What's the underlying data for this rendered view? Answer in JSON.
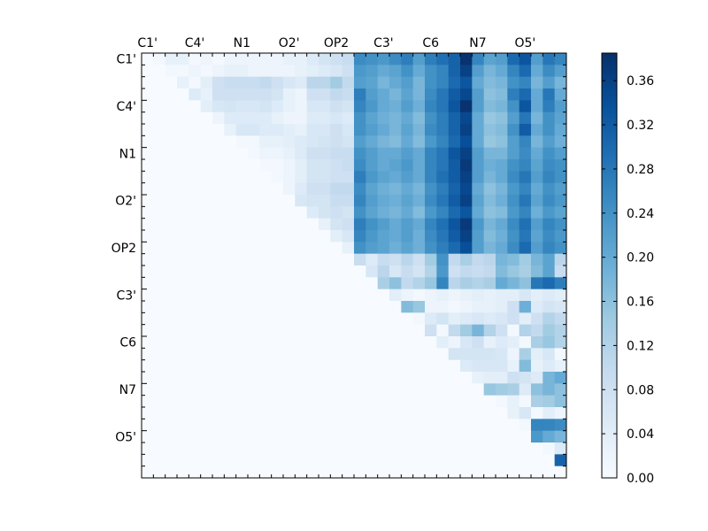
{
  "chart_data": {
    "type": "heatmap",
    "title": "",
    "xlabel": "",
    "ylabel": "",
    "n": 36,
    "labels": [
      "C1'",
      "C4'",
      "N1",
      "O2'",
      "OP2",
      "C3'",
      "C6",
      "N7",
      "O5'"
    ],
    "label_positions": [
      0,
      4,
      8,
      12,
      16,
      20,
      24,
      28,
      32
    ],
    "colorbar": {
      "min": 0.0,
      "max": 0.385,
      "ticks": [
        "0.00",
        "0.04",
        "0.08",
        "0.12",
        "0.16",
        "0.20",
        "0.24",
        "0.28",
        "0.32",
        "0.36"
      ],
      "tick_values": [
        0.0,
        0.04,
        0.08,
        0.12,
        0.16,
        0.2,
        0.24,
        0.28,
        0.32,
        0.36
      ]
    },
    "colormap": "Blues",
    "colormap_stops": [
      "#f7fbff",
      "#deebf7",
      "#c6dbef",
      "#9ecae1",
      "#6baed6",
      "#4292c6",
      "#2171b5",
      "#08519c",
      "#08306b"
    ],
    "matrix": [
      [
        0,
        0.01,
        0.03,
        0.03,
        0.01,
        0.02,
        0.01,
        0.02,
        0.02,
        0.02,
        0.02,
        0.02,
        0.03,
        0.03,
        0.05,
        0.07,
        0.08,
        0.09,
        0.25,
        0.24,
        0.23,
        0.25,
        0.27,
        0.22,
        0.27,
        0.29,
        0.31,
        0.38,
        0.26,
        0.21,
        0.22,
        0.3,
        0.33,
        0.22,
        0.28,
        0.26
      ],
      [
        0,
        0,
        0.01,
        0.01,
        0.02,
        0.01,
        0.02,
        0.03,
        0.03,
        0.02,
        0.02,
        0.02,
        0.02,
        0.03,
        0.04,
        0.05,
        0.06,
        0.08,
        0.23,
        0.22,
        0.2,
        0.21,
        0.24,
        0.2,
        0.24,
        0.26,
        0.31,
        0.36,
        0.22,
        0.18,
        0.2,
        0.26,
        0.3,
        0.2,
        0.25,
        0.22
      ],
      [
        0,
        0,
        0,
        0.03,
        0.01,
        0.04,
        0.08,
        0.09,
        0.09,
        0.09,
        0.1,
        0.08,
        0.06,
        0.05,
        0.11,
        0.11,
        0.14,
        0.1,
        0.22,
        0.21,
        0.18,
        0.2,
        0.22,
        0.18,
        0.24,
        0.26,
        0.3,
        0.33,
        0.2,
        0.17,
        0.18,
        0.24,
        0.26,
        0.18,
        0.22,
        0.18
      ],
      [
        0,
        0,
        0,
        0,
        0.05,
        0.03,
        0.08,
        0.08,
        0.08,
        0.08,
        0.08,
        0.07,
        0.03,
        0.02,
        0.08,
        0.08,
        0.1,
        0.09,
        0.27,
        0.22,
        0.2,
        0.18,
        0.21,
        0.18,
        0.25,
        0.28,
        0.32,
        0.35,
        0.22,
        0.16,
        0.17,
        0.27,
        0.3,
        0.2,
        0.28,
        0.2
      ],
      [
        0,
        0,
        0,
        0,
        0,
        0.04,
        0.06,
        0.07,
        0.06,
        0.06,
        0.07,
        0.05,
        0.03,
        0.02,
        0.06,
        0.06,
        0.08,
        0.07,
        0.26,
        0.23,
        0.2,
        0.19,
        0.22,
        0.19,
        0.26,
        0.28,
        0.33,
        0.38,
        0.22,
        0.17,
        0.18,
        0.24,
        0.33,
        0.2,
        0.27,
        0.22
      ],
      [
        0,
        0,
        0,
        0,
        0,
        0,
        0.02,
        0.05,
        0.05,
        0.05,
        0.05,
        0.03,
        0.02,
        0.02,
        0.05,
        0.05,
        0.06,
        0.05,
        0.24,
        0.21,
        0.19,
        0.18,
        0.2,
        0.17,
        0.24,
        0.27,
        0.31,
        0.35,
        0.2,
        0.15,
        0.16,
        0.22,
        0.28,
        0.18,
        0.24,
        0.21
      ],
      [
        0,
        0,
        0,
        0,
        0,
        0,
        0,
        0.03,
        0.06,
        0.06,
        0.05,
        0.05,
        0.04,
        0.03,
        0.06,
        0.06,
        0.08,
        0.06,
        0.24,
        0.22,
        0.2,
        0.18,
        0.21,
        0.18,
        0.25,
        0.27,
        0.31,
        0.36,
        0.2,
        0.16,
        0.17,
        0.24,
        0.32,
        0.2,
        0.24,
        0.2
      ],
      [
        0,
        0,
        0,
        0,
        0,
        0,
        0,
        0,
        0.01,
        0.01,
        0.03,
        0.03,
        0.04,
        0.05,
        0.06,
        0.07,
        0.08,
        0.07,
        0.22,
        0.2,
        0.18,
        0.17,
        0.2,
        0.17,
        0.23,
        0.26,
        0.3,
        0.34,
        0.2,
        0.15,
        0.16,
        0.22,
        0.26,
        0.18,
        0.22,
        0.19
      ],
      [
        0,
        0,
        0,
        0,
        0,
        0,
        0,
        0,
        0,
        0.01,
        0.02,
        0.02,
        0.03,
        0.05,
        0.08,
        0.08,
        0.09,
        0.09,
        0.24,
        0.22,
        0.2,
        0.2,
        0.22,
        0.2,
        0.26,
        0.28,
        0.33,
        0.36,
        0.22,
        0.18,
        0.18,
        0.22,
        0.25,
        0.2,
        0.24,
        0.22
      ],
      [
        0,
        0,
        0,
        0,
        0,
        0,
        0,
        0,
        0,
        0,
        0.01,
        0.01,
        0.02,
        0.04,
        0.07,
        0.07,
        0.08,
        0.09,
        0.25,
        0.22,
        0.2,
        0.21,
        0.23,
        0.2,
        0.26,
        0.28,
        0.32,
        0.37,
        0.22,
        0.19,
        0.2,
        0.24,
        0.26,
        0.21,
        0.25,
        0.24
      ],
      [
        0,
        0,
        0,
        0,
        0,
        0,
        0,
        0,
        0,
        0,
        0,
        0.01,
        0.02,
        0.04,
        0.07,
        0.07,
        0.08,
        0.08,
        0.27,
        0.23,
        0.21,
        0.2,
        0.22,
        0.2,
        0.26,
        0.29,
        0.32,
        0.36,
        0.22,
        0.18,
        0.2,
        0.25,
        0.28,
        0.22,
        0.26,
        0.24
      ],
      [
        0,
        0,
        0,
        0,
        0,
        0,
        0,
        0,
        0,
        0,
        0,
        0,
        0.02,
        0.05,
        0.08,
        0.08,
        0.1,
        0.1,
        0.25,
        0.21,
        0.19,
        0.18,
        0.2,
        0.18,
        0.24,
        0.27,
        0.31,
        0.35,
        0.2,
        0.16,
        0.18,
        0.23,
        0.26,
        0.2,
        0.24,
        0.22
      ],
      [
        0,
        0,
        0,
        0,
        0,
        0,
        0,
        0,
        0,
        0,
        0,
        0,
        0,
        0.06,
        0.07,
        0.07,
        0.09,
        0.09,
        0.26,
        0.22,
        0.2,
        0.19,
        0.21,
        0.19,
        0.25,
        0.28,
        0.32,
        0.36,
        0.21,
        0.17,
        0.19,
        0.24,
        0.28,
        0.21,
        0.25,
        0.23
      ],
      [
        0,
        0,
        0,
        0,
        0,
        0,
        0,
        0,
        0,
        0,
        0,
        0,
        0,
        0,
        0.05,
        0.07,
        0.08,
        0.07,
        0.24,
        0.21,
        0.19,
        0.18,
        0.2,
        0.17,
        0.23,
        0.26,
        0.3,
        0.33,
        0.2,
        0.16,
        0.17,
        0.23,
        0.26,
        0.19,
        0.23,
        0.21
      ],
      [
        0,
        0,
        0,
        0,
        0,
        0,
        0,
        0,
        0,
        0,
        0,
        0,
        0,
        0,
        0,
        0.03,
        0.07,
        0.08,
        0.27,
        0.24,
        0.22,
        0.2,
        0.22,
        0.2,
        0.26,
        0.29,
        0.33,
        0.37,
        0.23,
        0.18,
        0.2,
        0.25,
        0.29,
        0.22,
        0.26,
        0.24
      ],
      [
        0,
        0,
        0,
        0,
        0,
        0,
        0,
        0,
        0,
        0,
        0,
        0,
        0,
        0,
        0,
        0,
        0.04,
        0.06,
        0.26,
        0.23,
        0.21,
        0.2,
        0.22,
        0.19,
        0.25,
        0.28,
        0.32,
        0.36,
        0.22,
        0.17,
        0.19,
        0.24,
        0.28,
        0.21,
        0.25,
        0.23
      ],
      [
        0,
        0,
        0,
        0,
        0,
        0,
        0,
        0,
        0,
        0,
        0,
        0,
        0,
        0,
        0,
        0,
        0,
        0.03,
        0.24,
        0.22,
        0.21,
        0.19,
        0.21,
        0.19,
        0.24,
        0.27,
        0.3,
        0.34,
        0.22,
        0.18,
        0.2,
        0.25,
        0.3,
        0.22,
        0.26,
        0.24
      ],
      [
        0,
        0,
        0,
        0,
        0,
        0,
        0,
        0,
        0,
        0,
        0,
        0,
        0,
        0,
        0,
        0,
        0,
        0,
        0.09,
        0.05,
        0.09,
        0.08,
        0.11,
        0.08,
        0.14,
        0.24,
        0.1,
        0.13,
        0.1,
        0.11,
        0.18,
        0.17,
        0.14,
        0.18,
        0.21,
        0.11
      ],
      [
        0,
        0,
        0,
        0,
        0,
        0,
        0,
        0,
        0,
        0,
        0,
        0,
        0,
        0,
        0,
        0,
        0,
        0,
        0,
        0.06,
        0.11,
        0.06,
        0.09,
        0.07,
        0.12,
        0.23,
        0.08,
        0.1,
        0.09,
        0.1,
        0.17,
        0.15,
        0.13,
        0.17,
        0.21,
        0.09
      ],
      [
        0,
        0,
        0,
        0,
        0,
        0,
        0,
        0,
        0,
        0,
        0,
        0,
        0,
        0,
        0,
        0,
        0,
        0,
        0,
        0,
        0.13,
        0.16,
        0.1,
        0.12,
        0.15,
        0.26,
        0.11,
        0.13,
        0.12,
        0.13,
        0.2,
        0.18,
        0.16,
        0.28,
        0.3,
        0.27
      ],
      [
        0,
        0,
        0,
        0,
        0,
        0,
        0,
        0,
        0,
        0,
        0,
        0,
        0,
        0,
        0,
        0,
        0,
        0,
        0,
        0,
        0,
        0.04,
        0.02,
        0.01,
        0.02,
        0.03,
        0.02,
        0.03,
        0.04,
        0.03,
        0.04,
        0.04,
        0.06,
        0.04,
        0.05,
        0.04
      ],
      [
        0,
        0,
        0,
        0,
        0,
        0,
        0,
        0,
        0,
        0,
        0,
        0,
        0,
        0,
        0,
        0,
        0,
        0,
        0,
        0,
        0,
        0,
        0.17,
        0.15,
        0.02,
        0.02,
        0.01,
        0.02,
        0.03,
        0.03,
        0.04,
        0.08,
        0.19,
        0.05,
        0.07,
        0.06
      ],
      [
        0,
        0,
        0,
        0,
        0,
        0,
        0,
        0,
        0,
        0,
        0,
        0,
        0,
        0,
        0,
        0,
        0,
        0,
        0,
        0,
        0,
        0,
        0,
        0.01,
        0.05,
        0.07,
        0.04,
        0.05,
        0.06,
        0.05,
        0.06,
        0.08,
        0.04,
        0.08,
        0.12,
        0.1
      ],
      [
        0,
        0,
        0,
        0,
        0,
        0,
        0,
        0,
        0,
        0,
        0,
        0,
        0,
        0,
        0,
        0,
        0,
        0,
        0,
        0,
        0,
        0,
        0,
        0,
        0.08,
        0.01,
        0.1,
        0.14,
        0.18,
        0.12,
        0.08,
        0.01,
        0.12,
        0.1,
        0.14,
        0.12
      ],
      [
        0,
        0,
        0,
        0,
        0,
        0,
        0,
        0,
        0,
        0,
        0,
        0,
        0,
        0,
        0,
        0,
        0,
        0,
        0,
        0,
        0,
        0,
        0,
        0,
        0,
        0.04,
        0.02,
        0.06,
        0.08,
        0.03,
        0.05,
        0.04,
        0.01,
        0.13,
        0.15,
        0.12
      ],
      [
        0,
        0,
        0,
        0,
        0,
        0,
        0,
        0,
        0,
        0,
        0,
        0,
        0,
        0,
        0,
        0,
        0,
        0,
        0,
        0,
        0,
        0,
        0,
        0,
        0,
        0,
        0.07,
        0.07,
        0.07,
        0.07,
        0.06,
        0.02,
        0.13,
        0.04,
        0.06,
        0.01
      ],
      [
        0,
        0,
        0,
        0,
        0,
        0,
        0,
        0,
        0,
        0,
        0,
        0,
        0,
        0,
        0,
        0,
        0,
        0,
        0,
        0,
        0,
        0,
        0,
        0,
        0,
        0,
        0,
        0.05,
        0.06,
        0.06,
        0.06,
        0.03,
        0.17,
        0.03,
        0.05,
        0.03
      ],
      [
        0,
        0,
        0,
        0,
        0,
        0,
        0,
        0,
        0,
        0,
        0,
        0,
        0,
        0,
        0,
        0,
        0,
        0,
        0,
        0,
        0,
        0,
        0,
        0,
        0,
        0,
        0,
        0,
        0.03,
        0.04,
        0.04,
        0.08,
        0.07,
        0.05,
        0.18,
        0.2
      ],
      [
        0,
        0,
        0,
        0,
        0,
        0,
        0,
        0,
        0,
        0,
        0,
        0,
        0,
        0,
        0,
        0,
        0,
        0,
        0,
        0,
        0,
        0,
        0,
        0,
        0,
        0,
        0,
        0,
        0,
        0.15,
        0.14,
        0.13,
        0.05,
        0.16,
        0.18,
        0.16
      ],
      [
        0,
        0,
        0,
        0,
        0,
        0,
        0,
        0,
        0,
        0,
        0,
        0,
        0,
        0,
        0,
        0,
        0,
        0,
        0,
        0,
        0,
        0,
        0,
        0,
        0,
        0,
        0,
        0,
        0,
        0,
        0.01,
        0.03,
        0.01,
        0.13,
        0.14,
        0.16
      ],
      [
        0,
        0,
        0,
        0,
        0,
        0,
        0,
        0,
        0,
        0,
        0,
        0,
        0,
        0,
        0,
        0,
        0,
        0,
        0,
        0,
        0,
        0,
        0,
        0,
        0,
        0,
        0,
        0,
        0,
        0,
        0,
        0.03,
        0.06,
        0.01,
        0.04,
        0.02
      ],
      [
        0,
        0,
        0,
        0,
        0,
        0,
        0,
        0,
        0,
        0,
        0,
        0,
        0,
        0,
        0,
        0,
        0,
        0,
        0,
        0,
        0,
        0,
        0,
        0,
        0,
        0,
        0,
        0,
        0,
        0,
        0,
        0,
        0.01,
        0.26,
        0.26,
        0.25
      ],
      [
        0,
        0,
        0,
        0,
        0,
        0,
        0,
        0,
        0,
        0,
        0,
        0,
        0,
        0,
        0,
        0,
        0,
        0,
        0,
        0,
        0,
        0,
        0,
        0,
        0,
        0,
        0,
        0,
        0,
        0,
        0,
        0,
        0,
        0.23,
        0.2,
        0.18
      ],
      [
        0,
        0,
        0,
        0,
        0,
        0,
        0,
        0,
        0,
        0,
        0,
        0,
        0,
        0,
        0,
        0,
        0,
        0,
        0,
        0,
        0,
        0,
        0,
        0,
        0,
        0,
        0,
        0,
        0,
        0,
        0,
        0,
        0,
        0,
        0.01,
        0.05
      ],
      [
        0,
        0,
        0,
        0,
        0,
        0,
        0,
        0,
        0,
        0,
        0,
        0,
        0,
        0,
        0,
        0,
        0,
        0,
        0,
        0,
        0,
        0,
        0,
        0,
        0,
        0,
        0,
        0,
        0,
        0,
        0,
        0,
        0,
        0,
        0,
        0.31
      ],
      [
        0,
        0,
        0,
        0,
        0,
        0,
        0,
        0,
        0,
        0,
        0,
        0,
        0,
        0,
        0,
        0,
        0,
        0,
        0,
        0,
        0,
        0,
        0,
        0,
        0,
        0,
        0,
        0,
        0,
        0,
        0,
        0,
        0,
        0,
        0,
        0
      ]
    ]
  }
}
